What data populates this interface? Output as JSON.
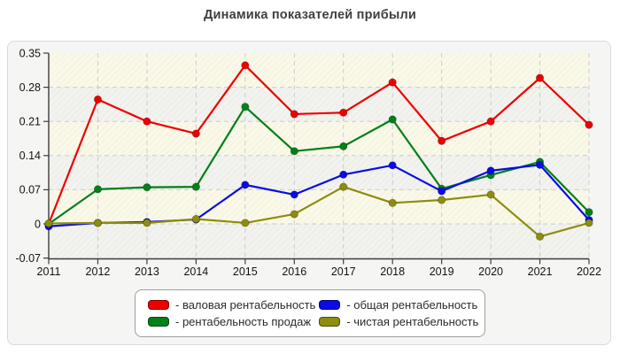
{
  "title": "Динамика показателей прибыли",
  "colors": {
    "red": "#ee0000",
    "green": "#008019",
    "blue": "#0b0be6",
    "olive": "#8d8d0e",
    "panel_bg": "#f5f5f3",
    "panel_border": "#dadada",
    "plot_band": "#faf9e8",
    "plot_band_alt": "#f2f2ee",
    "grid": "#cccccc",
    "axis": "#3c3c3c",
    "tick_label": "#141414",
    "title_color": "#3f3f3f",
    "legend_border": "#9f9f9f",
    "legend_bg": "#ffffff"
  },
  "chart_data": {
    "type": "line",
    "x": [
      "2011",
      "2012",
      "2013",
      "2014",
      "2015",
      "2016",
      "2017",
      "2018",
      "2019",
      "2020",
      "2021",
      "2022"
    ],
    "ylim": [
      -0.07,
      0.35
    ],
    "grid": true,
    "legend_position": "bottom",
    "y_ticks": [
      {
        "v": 0.35,
        "label": "0.35"
      },
      {
        "v": 0.28,
        "label": "0.28"
      },
      {
        "v": 0.21,
        "label": "0.21"
      },
      {
        "v": 0.14,
        "label": "0.14"
      },
      {
        "v": 0.07,
        "label": "0.07"
      },
      {
        "v": 0,
        "label": "0"
      },
      {
        "v": -0.07,
        "label": "-0.07"
      }
    ],
    "series": [
      {
        "key": "gross-margin",
        "name": "валовая рентабельность",
        "color": "#ee0000",
        "values": [
          0,
          0.255,
          0.21,
          0.185,
          0.325,
          0.225,
          0.228,
          0.29,
          0.17,
          0.21,
          0.299,
          0.203
        ]
      },
      {
        "key": "sales-margin",
        "name": "рентабельность продаж",
        "color": "#008019",
        "values": [
          0,
          0.071,
          0.075,
          0.076,
          0.24,
          0.149,
          0.159,
          0.214,
          0.072,
          0.1,
          0.127,
          0.024
        ]
      },
      {
        "key": "total-margin",
        "name": "общая рентабельность",
        "color": "#0b0be6",
        "values": [
          -0.005,
          0.002,
          0.004,
          0.009,
          0.08,
          0.06,
          0.101,
          0.12,
          0.067,
          0.109,
          0.121,
          0.008
        ]
      },
      {
        "key": "net-margin",
        "name": "чистая рентабельность",
        "color": "#8d8d0e",
        "values": [
          0.001,
          0.002,
          0.002,
          0.01,
          0.002,
          0.02,
          0.076,
          0.043,
          0.049,
          0.06,
          -0.026,
          0.002
        ]
      }
    ]
  },
  "legend": {
    "items": [
      {
        "key": "gross-margin",
        "label": "- валовая рентабельность",
        "color": "#ee0000"
      },
      {
        "key": "total-margin",
        "label": "- общая рентабельность",
        "color": "#0b0be6"
      },
      {
        "key": "sales-margin",
        "label": "- рентабельность продаж",
        "color": "#008019"
      },
      {
        "key": "net-margin",
        "label": "- чистая рентабельность",
        "color": "#8d8d0e"
      }
    ]
  }
}
